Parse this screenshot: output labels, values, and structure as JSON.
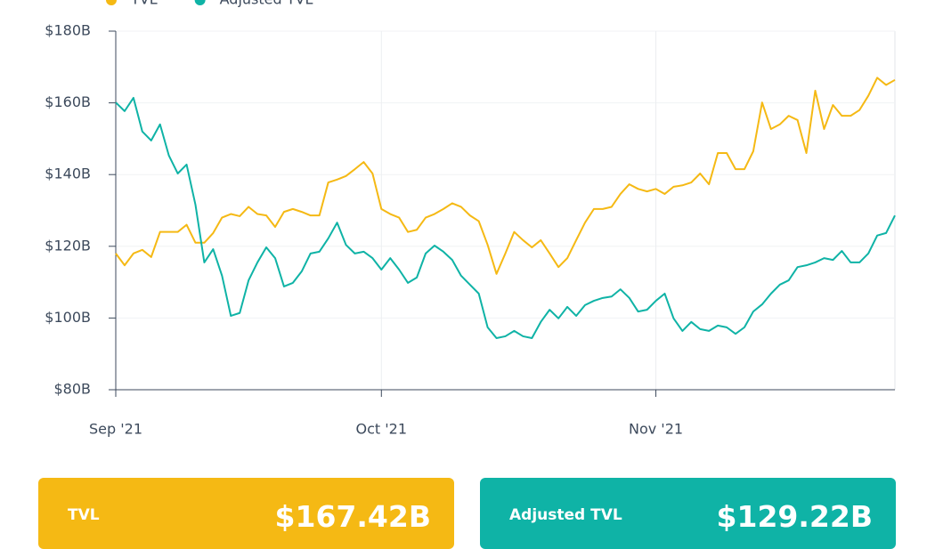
{
  "chart_data": {
    "type": "line",
    "x": [
      0,
      1,
      2,
      3,
      4,
      5,
      6,
      7,
      8,
      9,
      10,
      11,
      12,
      13,
      14,
      15,
      16,
      17,
      18,
      19,
      20,
      21,
      22,
      23,
      24,
      25,
      26,
      27,
      28,
      29,
      30,
      31,
      32,
      33,
      34,
      35,
      36,
      37,
      38,
      39,
      40,
      41,
      42,
      43,
      44,
      45,
      46,
      47,
      48,
      49,
      50,
      51,
      52,
      53,
      54,
      55,
      56,
      57,
      58,
      59,
      60,
      61,
      62,
      63,
      64,
      65,
      66,
      67,
      68,
      69,
      70,
      71,
      72,
      73,
      74,
      75,
      76,
      77,
      78,
      79,
      80,
      81,
      82,
      83,
      84,
      85,
      86,
      87,
      88
    ],
    "series": [
      {
        "name": "TVL",
        "color": "#f5b914",
        "values": [
          118,
          114.7,
          118,
          119,
          117,
          124,
          124,
          124,
          126,
          121,
          121,
          123.7,
          128,
          129,
          128.4,
          131,
          129,
          128.6,
          125.4,
          129.6,
          130.4,
          129.6,
          128.6,
          128.6,
          137.8,
          138.6,
          139.6,
          141.5,
          143.5,
          140.3,
          130.4,
          129,
          128,
          124,
          124.6,
          128,
          129,
          130.4,
          132,
          131,
          128.6,
          127,
          120.4,
          112.3,
          118,
          124,
          121.7,
          119.7,
          121.7,
          118,
          114.2,
          116.7,
          121.7,
          126.6,
          130.4,
          130.4,
          131,
          134.6,
          137.3,
          136,
          135.3,
          136,
          134.6,
          136.6,
          137,
          137.8,
          140.3,
          137.3,
          146,
          146,
          141.5,
          141.5,
          146.5,
          160.1,
          152.7,
          154,
          156.4,
          155.2,
          146,
          163.4,
          152.7,
          159.4,
          156.4,
          156.4,
          158,
          162,
          167,
          165,
          166.4
        ]
      },
      {
        "name": "Adjusted TVL",
        "color": "#0fb3a6",
        "values": [
          160.1,
          157.7,
          161.4,
          152,
          149.5,
          154,
          145.3,
          140.3,
          142.8,
          131.6,
          115.5,
          119.2,
          111.8,
          100.6,
          101.4,
          110.5,
          115.5,
          119.7,
          116.7,
          108.8,
          109.8,
          113,
          118,
          118.5,
          122.2,
          126.6,
          120.4,
          118,
          118.5,
          116.7,
          113.5,
          116.7,
          113.5,
          109.8,
          111.3,
          118,
          120.2,
          118.5,
          116.2,
          111.8,
          109.3,
          106.8,
          97.4,
          94.4,
          94.9,
          96.4,
          94.9,
          94.4,
          98.9,
          102.3,
          99.9,
          103.1,
          100.6,
          103.6,
          104.8,
          105.6,
          106,
          108,
          105.6,
          101.8,
          102.3,
          104.8,
          106.8,
          99.9,
          96.4,
          98.9,
          96.9,
          96.4,
          97.9,
          97.4,
          95.6,
          97.4,
          101.8,
          103.8,
          106.8,
          109.3,
          110.5,
          114.2,
          114.7,
          115.5,
          116.7,
          116.2,
          118.7,
          115.5,
          115.5,
          118,
          123,
          123.7,
          128.6
        ]
      }
    ],
    "xlim": [
      0,
      88
    ],
    "xticks": [
      {
        "value": 0,
        "label": "Sep '21"
      },
      {
        "value": 30,
        "label": "Oct '21"
      },
      {
        "value": 61,
        "label": "Nov '21"
      }
    ],
    "ylim": [
      80,
      180
    ],
    "yticks": [
      {
        "value": 80,
        "label": "$80B"
      },
      {
        "value": 100,
        "label": "$100B"
      },
      {
        "value": 120,
        "label": "$120B"
      },
      {
        "value": 140,
        "label": "$140B"
      },
      {
        "value": 160,
        "label": "$160B"
      },
      {
        "value": 180,
        "label": "$180B"
      }
    ],
    "grid": true,
    "legend": "top-left"
  },
  "summary": [
    {
      "label": "TVL",
      "value": "$167.42B",
      "color": "#f5b914"
    },
    {
      "label": "Adjusted TVL",
      "value": "$129.22B",
      "color": "#0fb3a6"
    }
  ]
}
